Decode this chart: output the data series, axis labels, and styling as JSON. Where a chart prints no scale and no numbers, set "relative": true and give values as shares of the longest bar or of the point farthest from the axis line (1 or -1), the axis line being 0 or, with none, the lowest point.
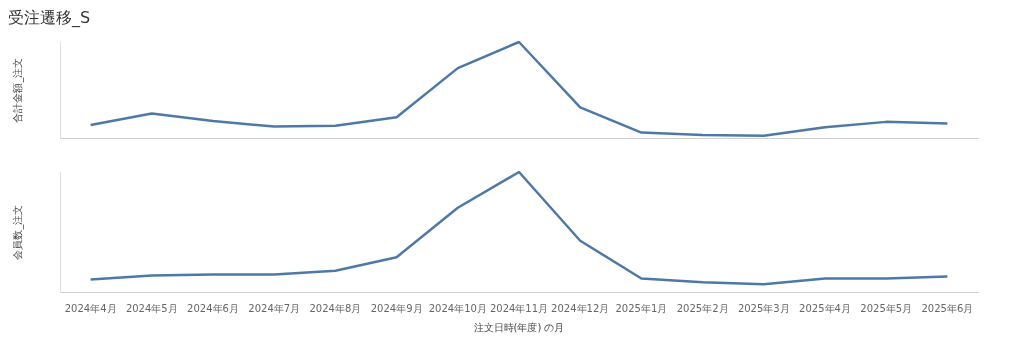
{
  "chart_data": [
    {
      "type": "line",
      "title": "受注遷移_S",
      "ylabel": "合計金額_注文",
      "relative": true,
      "categories": [
        null,
        null,
        null,
        null,
        null,
        null,
        null,
        null,
        null,
        null,
        null,
        null,
        null,
        null,
        null
      ],
      "series": [
        {
          "color": "#4e79a7",
          "values": [
            0.136,
            0.256,
            0.176,
            0.12,
            0.128,
            0.216,
            0.728,
            1,
            0.32,
            0.056,
            0.032,
            0.024,
            0.112,
            0.168,
            0.152
          ]
        }
      ]
    },
    {
      "type": "line",
      "ylabel": "会員数_注文",
      "xlabel": "注文日時(年度) の月",
      "relative": true,
      "tick_labels": "x",
      "categories": [
        "2024年4月",
        "2024年5月",
        "2024年6月",
        "2024年7月",
        "2024年8月",
        "2024年9月",
        "2024年10月",
        "2024年11月",
        "2024年12月",
        "2025年1月",
        "2025年2月",
        "2025年3月",
        "2025年4月",
        "2025年5月",
        "2025年6月"
      ],
      "series": [
        {
          "color": "#4e79a7",
          "values": [
            0.105,
            0.137,
            0.145,
            0.145,
            0.177,
            0.29,
            0.702,
            1,
            0.427,
            0.113,
            0.081,
            0.065,
            0.113,
            0.113,
            0.129
          ]
        }
      ]
    }
  ]
}
